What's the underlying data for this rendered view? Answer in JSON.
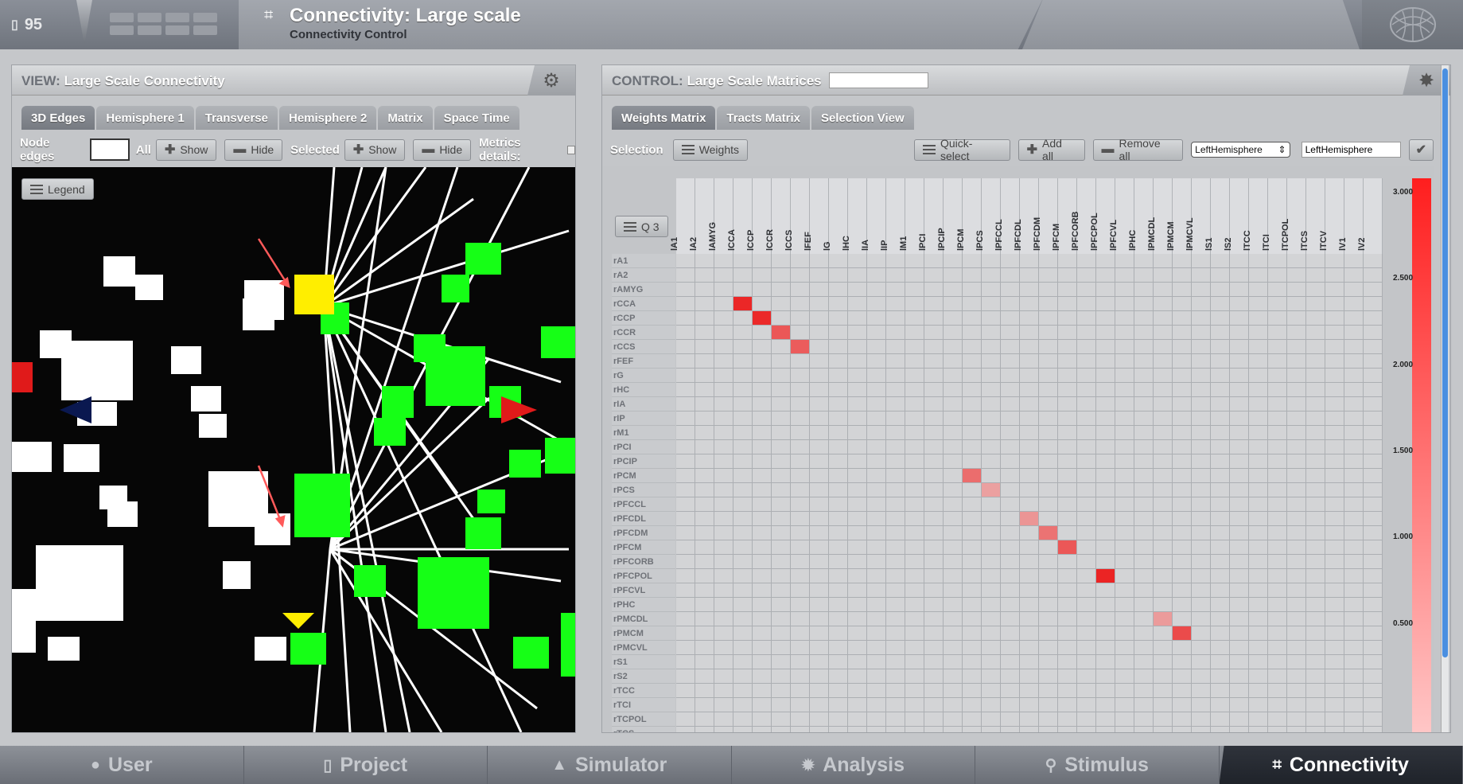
{
  "topbar": {
    "project_count": "95",
    "title": "Connectivity: Large scale",
    "subtitle": "Connectivity Control"
  },
  "view": {
    "title_prefix": "VIEW:",
    "title": "Large Scale Connectivity",
    "tabs": [
      "3D Edges",
      "Hemisphere 1",
      "Transverse",
      "Hemisphere 2",
      "Matrix",
      "Space Time"
    ],
    "active_tab": "3D Edges",
    "toolbar": {
      "node_edges_label": "Node edges",
      "node_edges_value": "",
      "all_label": "All",
      "show_label": "Show",
      "hide_label": "Hide",
      "selected_label": "Selected",
      "show2_label": "Show",
      "hide2_label": "Hide",
      "metrics_label": "Metrics details:"
    },
    "legend_label": "Legend"
  },
  "control": {
    "title_prefix": "CONTROL:",
    "title": "Large Scale Matrices",
    "title_input": "",
    "tabs": [
      "Weights Matrix",
      "Tracts Matrix",
      "Selection View"
    ],
    "active_tab": "Weights Matrix",
    "toolbar": {
      "selection_label": "Selection",
      "weights_label": "Weights",
      "quick_select_label": "Quick-select",
      "add_all_label": "Add all",
      "remove_all_label": "Remove all",
      "select_value": "LeftHemisphere",
      "text_value": "LeftHemisphere"
    },
    "q3_label": "Q 3",
    "columns": [
      "lA1",
      "lA2",
      "lAMYG",
      "lCCA",
      "lCCP",
      "lCCR",
      "lCCS",
      "lFEF",
      "lG",
      "lHC",
      "lIA",
      "lIP",
      "lM1",
      "lPCI",
      "lPCIP",
      "lPCM",
      "lPCS",
      "lPFCCL",
      "lPFCDL",
      "lPFCDM",
      "lPFCM",
      "lPFCORB",
      "lPFCPOL",
      "lPFCVL",
      "lPHC",
      "lPMCDL",
      "lPMCM",
      "lPMCVL",
      "lS1",
      "lS2",
      "lTCC",
      "lTCI",
      "lTCPOL",
      "lTCS",
      "lTCV",
      "lV1",
      "lV2"
    ],
    "rows": [
      "rA1",
      "rA2",
      "rAMYG",
      "rCCA",
      "rCCP",
      "rCCR",
      "rCCS",
      "rFEF",
      "rG",
      "rHC",
      "rIA",
      "rIP",
      "rM1",
      "rPCI",
      "rPCIP",
      "rPCM",
      "rPCS",
      "rPFCCL",
      "rPFCDL",
      "rPFCDM",
      "rPFCM",
      "rPFCORB",
      "rPFCPOL",
      "rPFCVL",
      "rPHC",
      "rPMCDL",
      "rPMCM",
      "rPMCVL",
      "rS1",
      "rS2",
      "rTCC",
      "rTCI",
      "rTCPOL",
      "rTCS"
    ],
    "highlighted_cells": [
      {
        "row": "rCCA",
        "col": "lCCA",
        "value": 2.85
      },
      {
        "row": "rCCP",
        "col": "lCCP",
        "value": 2.8
      },
      {
        "row": "rCCR",
        "col": "lCCR",
        "value": 2.0
      },
      {
        "row": "rCCS",
        "col": "lCCS",
        "value": 1.9
      },
      {
        "row": "rPCM",
        "col": "lPCM",
        "value": 1.6
      },
      {
        "row": "rPCS",
        "col": "lPCS",
        "value": 0.7
      },
      {
        "row": "rPFCDL",
        "col": "lPFCDL",
        "value": 0.9
      },
      {
        "row": "rPFCDM",
        "col": "lPFCDM",
        "value": 1.5
      },
      {
        "row": "rPFCM",
        "col": "lPFCM",
        "value": 2.0
      },
      {
        "row": "rPFCPOL",
        "col": "lPFCPOL",
        "value": 2.9
      },
      {
        "row": "rPMCDL",
        "col": "lPMCDL",
        "value": 0.8
      },
      {
        "row": "rPMCM",
        "col": "lPMCM",
        "value": 2.2
      }
    ],
    "scale": {
      "max": 3.0,
      "ticks": [
        "3.000",
        "2.500",
        "2.000",
        "1.500",
        "1.000",
        "0.500"
      ]
    }
  },
  "bottom_nav": [
    {
      "label": "User",
      "icon": "user-icon"
    },
    {
      "label": "Project",
      "icon": "document-icon"
    },
    {
      "label": "Simulator",
      "icon": "rocket-icon"
    },
    {
      "label": "Analysis",
      "icon": "gear-icon"
    },
    {
      "label": "Stimulus",
      "icon": "pin-icon"
    },
    {
      "label": "Connectivity",
      "icon": "connectivity-icon",
      "active": true
    }
  ],
  "colors": {
    "highlight": "#e01a1a",
    "node_green": "#16ff16",
    "node_yellow": "#ffee00"
  }
}
